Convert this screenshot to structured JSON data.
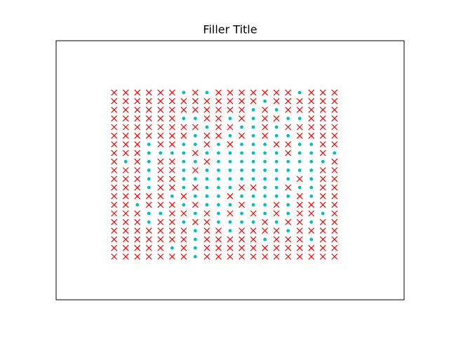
{
  "chart_data": {
    "type": "scatter",
    "title": "Filler Title",
    "xlim": [
      -5,
      25
    ],
    "ylim": [
      -5,
      25
    ],
    "series": [
      {
        "marker": "x",
        "color": "#ff0000",
        "x": [
          0,
          1,
          2,
          3,
          4,
          5,
          7,
          9,
          10,
          11,
          12,
          13,
          14,
          15,
          17,
          18,
          19,
          0,
          1,
          2,
          3,
          4,
          5,
          6,
          7,
          8,
          9,
          10,
          11,
          12,
          14,
          15,
          16,
          17,
          18,
          19,
          0,
          1,
          2,
          3,
          4,
          5,
          6,
          7,
          8,
          9,
          10,
          11,
          13,
          15,
          16,
          17,
          18,
          19,
          0,
          1,
          2,
          3,
          4,
          5,
          8,
          9,
          11,
          13,
          14,
          17,
          18,
          19,
          0,
          1,
          2,
          3,
          4,
          5,
          6,
          7,
          9,
          10,
          13,
          15,
          16,
          17,
          18,
          19,
          0,
          1,
          2,
          3,
          4,
          5,
          6,
          8,
          9,
          11,
          13,
          16,
          17,
          18,
          19,
          0,
          1,
          2,
          4,
          5,
          8,
          10,
          14,
          15,
          18,
          19,
          0,
          1,
          2,
          7,
          15,
          18,
          0,
          2,
          4,
          5,
          8,
          19,
          0,
          1,
          2,
          4,
          5,
          7,
          18,
          19,
          0,
          1,
          2,
          4,
          5,
          16,
          18,
          19,
          0,
          1,
          2,
          4,
          5,
          7,
          11,
          12,
          15,
          18,
          19,
          0,
          1,
          2,
          3,
          4,
          6,
          10,
          16,
          18,
          19,
          0,
          1,
          3,
          4,
          5,
          7,
          11,
          14,
          16,
          17,
          18,
          19,
          0,
          1,
          2,
          5,
          6,
          8,
          10,
          12,
          14,
          16,
          17,
          19,
          0,
          1,
          2,
          4,
          5,
          7,
          8,
          13,
          15,
          16,
          18,
          19,
          0,
          1,
          2,
          3,
          4,
          5,
          6,
          8,
          9,
          11,
          12,
          13,
          14,
          16,
          17,
          18,
          19,
          0,
          1,
          2,
          3,
          4,
          5,
          6,
          8,
          9,
          10,
          11,
          12,
          14,
          15,
          16,
          18,
          19,
          0,
          1,
          2,
          3,
          4,
          6,
          8,
          9,
          10,
          11,
          12,
          13,
          14,
          15,
          16,
          17,
          18,
          19,
          0,
          1,
          2,
          3,
          4,
          5,
          6,
          8,
          9,
          10,
          11,
          12,
          13,
          14,
          15,
          16,
          17,
          18,
          19
        ],
        "y": [
          19,
          19,
          19,
          19,
          19,
          19,
          19,
          19,
          19,
          19,
          19,
          19,
          19,
          19,
          19,
          19,
          19,
          18,
          18,
          18,
          18,
          18,
          18,
          18,
          18,
          18,
          18,
          18,
          18,
          18,
          18,
          18,
          18,
          18,
          18,
          18,
          17,
          17,
          17,
          17,
          17,
          17,
          17,
          17,
          17,
          17,
          17,
          17,
          17,
          17,
          17,
          17,
          17,
          17,
          16,
          16,
          16,
          16,
          16,
          16,
          16,
          16,
          16,
          16,
          16,
          16,
          16,
          16,
          15,
          15,
          15,
          15,
          15,
          15,
          15,
          15,
          15,
          15,
          15,
          15,
          15,
          15,
          15,
          15,
          14,
          14,
          14,
          14,
          14,
          14,
          14,
          14,
          14,
          14,
          14,
          14,
          14,
          14,
          14,
          13,
          13,
          13,
          13,
          13,
          13,
          13,
          13,
          13,
          13,
          13,
          12,
          12,
          12,
          12,
          12,
          12,
          11,
          11,
          11,
          11,
          11,
          11,
          10,
          10,
          10,
          10,
          10,
          10,
          10,
          10,
          9,
          9,
          9,
          9,
          9,
          9,
          9,
          9,
          8,
          8,
          8,
          8,
          8,
          8,
          8,
          8,
          8,
          8,
          8,
          7,
          7,
          7,
          7,
          7,
          7,
          7,
          7,
          7,
          7,
          6,
          6,
          6,
          6,
          6,
          6,
          6,
          6,
          6,
          6,
          6,
          6,
          5,
          5,
          5,
          5,
          5,
          5,
          5,
          5,
          5,
          5,
          5,
          5,
          4,
          4,
          4,
          4,
          4,
          4,
          4,
          4,
          4,
          4,
          4,
          4,
          3,
          3,
          3,
          3,
          3,
          3,
          3,
          3,
          3,
          3,
          3,
          3,
          3,
          3,
          3,
          3,
          3,
          2,
          2,
          2,
          2,
          2,
          2,
          2,
          2,
          2,
          2,
          2,
          2,
          2,
          2,
          2,
          2,
          2,
          1,
          1,
          1,
          1,
          1,
          1,
          1,
          1,
          1,
          1,
          1,
          1,
          1,
          1,
          1,
          1,
          1,
          1,
          0,
          0,
          0,
          0,
          0,
          0,
          0,
          0,
          0,
          0,
          0,
          0,
          0,
          0,
          0,
          0,
          0,
          0,
          0
        ]
      },
      {
        "marker": "o",
        "color": "#00bfbf",
        "x": [
          6,
          8,
          16,
          13,
          12,
          14,
          6,
          7,
          10,
          12,
          15,
          16,
          8,
          11,
          12,
          14,
          7,
          10,
          12,
          14,
          15,
          3,
          6,
          7,
          9,
          11,
          12,
          13,
          16,
          17,
          3,
          4,
          5,
          6,
          8,
          9,
          10,
          11,
          12,
          13,
          14,
          16,
          17,
          19,
          1,
          3,
          6,
          7,
          9,
          10,
          11,
          12,
          13,
          14,
          15,
          16,
          17,
          18,
          3,
          6,
          8,
          9,
          10,
          11,
          12,
          13,
          14,
          15,
          16,
          17,
          3,
          6,
          7,
          8,
          9,
          10,
          11,
          12,
          13,
          14,
          15,
          17,
          3,
          6,
          8,
          9,
          10,
          13,
          14,
          16,
          17,
          5,
          7,
          8,
          9,
          11,
          12,
          13,
          14,
          15,
          17,
          2,
          6,
          8,
          9,
          10,
          12,
          13,
          15,
          3,
          4,
          7,
          9,
          11,
          13,
          15,
          18,
          3,
          6,
          9,
          10,
          11,
          12,
          14,
          17,
          7,
          10,
          15,
          7,
          13,
          17,
          5,
          7,
          7
        ],
        "y": [
          19,
          19,
          19,
          18,
          17,
          17,
          16,
          16,
          16,
          16,
          16,
          16,
          15,
          15,
          15,
          15,
          14,
          14,
          14,
          14,
          14,
          13,
          13,
          13,
          13,
          13,
          13,
          13,
          13,
          13,
          12,
          12,
          12,
          12,
          12,
          12,
          12,
          12,
          12,
          12,
          12,
          12,
          12,
          12,
          11,
          11,
          11,
          11,
          11,
          11,
          11,
          11,
          11,
          11,
          11,
          11,
          11,
          11,
          10,
          10,
          10,
          10,
          10,
          10,
          10,
          10,
          10,
          10,
          10,
          10,
          9,
          9,
          9,
          9,
          9,
          9,
          9,
          9,
          9,
          9,
          9,
          9,
          8,
          8,
          8,
          8,
          8,
          8,
          8,
          8,
          8,
          7,
          7,
          7,
          7,
          7,
          7,
          7,
          7,
          7,
          7,
          6,
          6,
          6,
          6,
          6,
          6,
          6,
          6,
          5,
          5,
          5,
          5,
          5,
          5,
          5,
          5,
          4,
          4,
          4,
          4,
          4,
          4,
          4,
          4,
          3,
          3,
          3,
          2,
          2,
          2,
          1,
          1,
          0
        ]
      }
    ]
  }
}
